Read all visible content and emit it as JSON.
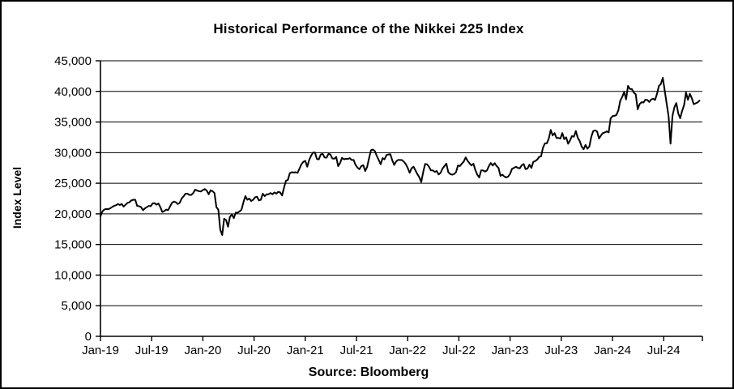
{
  "window": {
    "background_color": "#FFFFFF",
    "frame_border_color": "#000000"
  },
  "chart": {
    "title": "Historical Performance of the Nikkei 225 Index",
    "y_axis_title": "Index Level",
    "source_caption": "Source: Bloomberg"
  },
  "chart_data": {
    "type": "line",
    "title": "Historical Performance of the Nikkei 225 Index",
    "xlabel": "",
    "ylabel": "Index Level",
    "caption": "Source: Bloomberg",
    "ylim": [
      0,
      45000
    ],
    "grid": "horizontal",
    "legend": "none",
    "line_color": "#000000",
    "axis_color": "#000000",
    "y_ticks": [
      0,
      5000,
      10000,
      15000,
      20000,
      25000,
      30000,
      35000,
      40000,
      45000
    ],
    "y_tick_labels": [
      "0",
      "5,000",
      "10,000",
      "15,000",
      "20,000",
      "25,000",
      "30,000",
      "35,000",
      "40,000",
      "45,000"
    ],
    "x_tick_labels": [
      "Jan-19",
      "Jul-19",
      "Jan-20",
      "Jul-20",
      "Jan-21",
      "Jul-21",
      "Jan-22",
      "Jul-22",
      "Jan-23",
      "Jul-23",
      "Jan-24",
      "Jul-24"
    ],
    "x_tick_months": [
      0,
      6,
      12,
      18,
      24,
      30,
      36,
      42,
      48,
      54,
      60,
      66
    ],
    "x_total_months": 70.2,
    "series": [
      {
        "name": "Nikkei 225 Index Level",
        "frequency": "weekly",
        "start": "Jan-19",
        "end": "Nov-24",
        "values": [
          19600,
          20400,
          20700,
          20800,
          20750,
          20900,
          21100,
          21300,
          21400,
          21600,
          21450,
          21600,
          21200,
          21500,
          21800,
          21900,
          22200,
          22300,
          22300,
          21300,
          21250,
          21100,
          20600,
          20900,
          21100,
          21300,
          21250,
          21700,
          21750,
          21500,
          21700,
          21100,
          20300,
          20450,
          20700,
          20600,
          21200,
          21800,
          22000,
          21900,
          21600,
          21800,
          22500,
          22850,
          23300,
          23300,
          23100,
          23100,
          23400,
          23950,
          23800,
          23700,
          23650,
          23900,
          24050,
          23800,
          23200,
          23850,
          23700,
          23400,
          21100,
          20700,
          17400,
          16550,
          19200,
          19000,
          17900,
          19500,
          19900,
          19300,
          20200,
          20200,
          20400,
          20700,
          21900,
          22900,
          22300,
          22500,
          22100,
          22300,
          22700,
          22800,
          22200,
          22300,
          23300,
          22900,
          23200,
          23200,
          23400,
          23200,
          23500,
          23300,
          23600,
          23500,
          23000,
          24300,
          25400,
          25550,
          26650,
          26800,
          26750,
          26800,
          26700,
          27400,
          28100,
          28500,
          28650,
          27700,
          28800,
          29500,
          30000,
          30020,
          28970,
          28900,
          29700,
          29800,
          29200,
          29180,
          29800,
          29700,
          29050,
          29000,
          29300,
          27800,
          28300,
          29150,
          28900,
          29000,
          28960,
          29100,
          28800,
          28800,
          28000,
          27550,
          27300,
          27800,
          27950,
          27000,
          27650,
          29100,
          30400,
          30500,
          30250,
          29450,
          28800,
          28100,
          29100,
          28900,
          29600,
          29700,
          29750,
          28750,
          28000,
          28550,
          28800,
          28800,
          28790,
          28500,
          28120,
          27500,
          26700,
          27440,
          27700,
          27100,
          26480,
          25980,
          25200,
          26800,
          28150,
          28100,
          27700,
          27100,
          27100,
          26850,
          27000,
          26430,
          26700,
          27400,
          27800,
          28200,
          26800,
          26500,
          26400,
          26500,
          26800,
          27900,
          27800,
          28200,
          28550,
          29220,
          28650,
          28250,
          27900,
          28200,
          27150,
          26400,
          25940,
          27100,
          27100,
          26900,
          27100,
          27800,
          28300,
          27900,
          28280,
          27820,
          27500,
          26200,
          26400,
          26100,
          25950,
          26100,
          26550,
          27380,
          27500,
          27700,
          27500,
          27450,
          27930,
          28140,
          27300,
          27400,
          28040,
          27500,
          28500,
          28620,
          28860,
          29300,
          29390,
          30810,
          31520,
          31520,
          32300,
          33710,
          32800,
          33190,
          32400,
          32400,
          32300,
          33200,
          32200,
          32500,
          31450,
          32000,
          32700,
          32600,
          33530,
          32400,
          31900,
          31000,
          30550,
          31250,
          30640,
          31000,
          32600,
          33520,
          33630,
          33450,
          32310,
          32800,
          33200,
          33300,
          33460,
          33300,
          35580,
          35960,
          36010,
          36160,
          36900,
          38490,
          39100,
          39910,
          38700,
          40890,
          40400,
          40370,
          39800,
          39520,
          37070,
          37930,
          38230,
          38180,
          38650,
          38600,
          38280,
          38680,
          38810,
          38600,
          39600,
          40900,
          41200,
          42220,
          40130,
          38000,
          35900,
          31460,
          36000,
          37400,
          38100,
          36400,
          35620,
          36830,
          37720,
          39830,
          38640,
          39600,
          38900,
          37910,
          38050,
          38200,
          38500
        ]
      }
    ]
  }
}
